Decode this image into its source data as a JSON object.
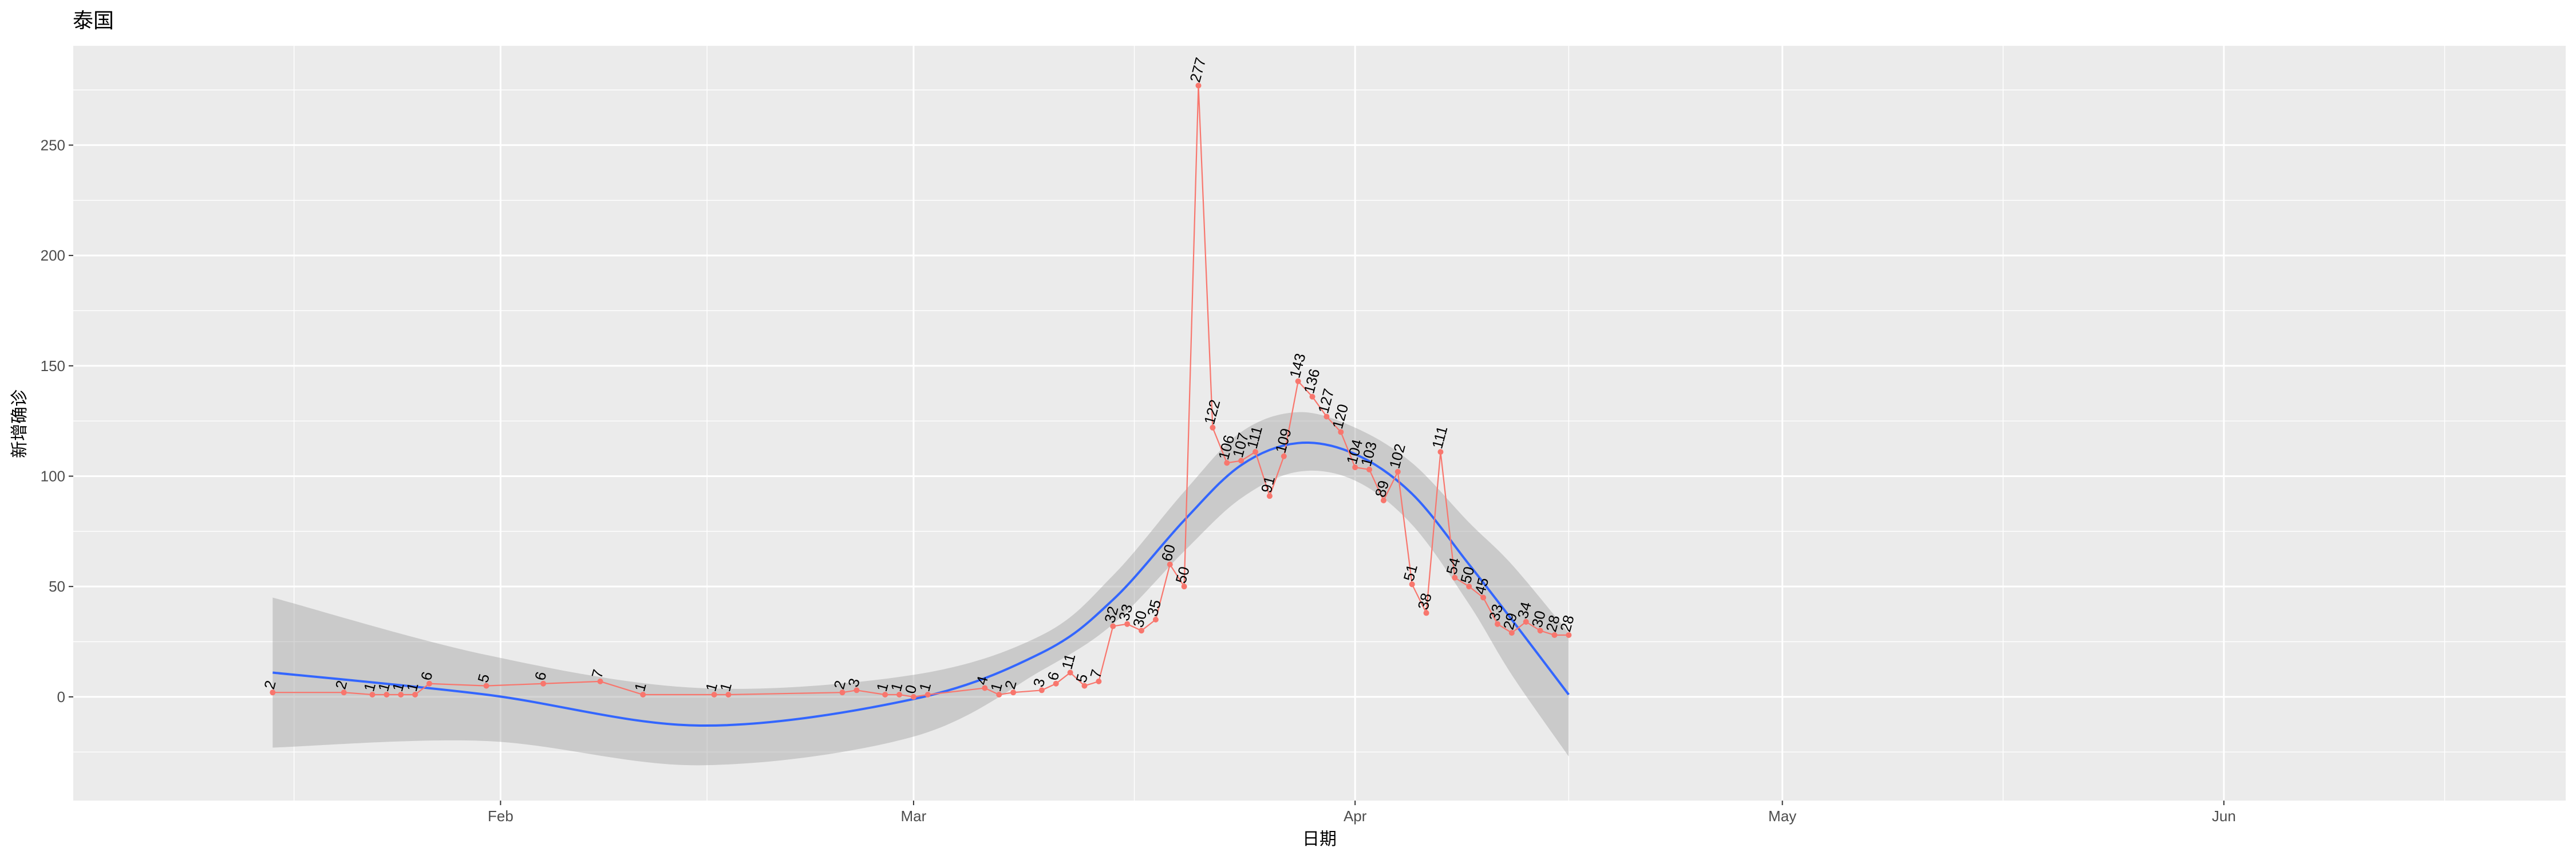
{
  "chart_data": {
    "type": "line",
    "title": "泰国",
    "xlabel": "日期",
    "ylabel": "新增确诊",
    "x_tick_labels": [
      "Feb",
      "Mar",
      "Apr",
      "May",
      "Jun"
    ],
    "x_ticks": [
      "2020-02-01",
      "2020-03-01",
      "2020-04-01",
      "2020-05-01",
      "2020-06-01"
    ],
    "y_ticks": [
      0,
      50,
      100,
      150,
      200,
      250
    ],
    "xlim": [
      "2020-01-02",
      "2020-06-25"
    ],
    "ylim": [
      -47,
      295
    ],
    "grid": true,
    "colors": {
      "panel": "#EBEBEB",
      "grid_major": "#FFFFFF",
      "line": "#F8766D",
      "smooth": "#3366FF",
      "ribbon": "#999999"
    },
    "series": [
      {
        "x": [
          "2020-01-16",
          "2020-01-21",
          "2020-01-23",
          "2020-01-24",
          "2020-01-25",
          "2020-01-26",
          "2020-01-27",
          "2020-01-31",
          "2020-02-04",
          "2020-02-08",
          "2020-02-11",
          "2020-02-16",
          "2020-02-17",
          "2020-02-25",
          "2020-02-26",
          "2020-02-28",
          "2020-02-29",
          "2020-03-01",
          "2020-03-02",
          "2020-03-06",
          "2020-03-07",
          "2020-03-08",
          "2020-03-10",
          "2020-03-11",
          "2020-03-12",
          "2020-03-13",
          "2020-03-14",
          "2020-03-15",
          "2020-03-16",
          "2020-03-17",
          "2020-03-18",
          "2020-03-19",
          "2020-03-20",
          "2020-03-21",
          "2020-03-22",
          "2020-03-23",
          "2020-03-24",
          "2020-03-25",
          "2020-03-26",
          "2020-03-27",
          "2020-03-28",
          "2020-03-29",
          "2020-03-30",
          "2020-03-31",
          "2020-04-01",
          "2020-04-02",
          "2020-04-03",
          "2020-04-04",
          "2020-04-05",
          "2020-04-06",
          "2020-04-07",
          "2020-04-08",
          "2020-04-09",
          "2020-04-10",
          "2020-04-11",
          "2020-04-12",
          "2020-04-13",
          "2020-04-14",
          "2020-04-15",
          "2020-04-16"
        ],
        "values": [
          2,
          2,
          1,
          1,
          1,
          1,
          6,
          5,
          6,
          7,
          1,
          1,
          1,
          2,
          3,
          1,
          1,
          0,
          1,
          4,
          1,
          2,
          3,
          6,
          11,
          5,
          7,
          32,
          33,
          30,
          35,
          60,
          50,
          277,
          122,
          106,
          107,
          111,
          91,
          109,
          143,
          136,
          127,
          120,
          104,
          103,
          89,
          102,
          51,
          38,
          111,
          54,
          50,
          45,
          33,
          29,
          34,
          30,
          28,
          28
        ]
      }
    ],
    "smooth": {
      "x": [
        "2020-01-16",
        "2020-01-31",
        "2020-02-15",
        "2020-03-01",
        "2020-03-10",
        "2020-03-15",
        "2020-03-20",
        "2020-03-24",
        "2020-03-28",
        "2020-04-01",
        "2020-04-05",
        "2020-04-09",
        "2020-04-12",
        "2020-04-16"
      ],
      "y": [
        11,
        1,
        -13,
        -1,
        20,
        44,
        80,
        105,
        115,
        110,
        92,
        60,
        35,
        1
      ],
      "ymin": [
        -23,
        -20,
        -31,
        -18,
        12,
        33,
        66,
        90,
        102,
        98,
        78,
        42,
        10,
        -27
      ],
      "ymax": [
        45,
        19,
        4,
        10,
        28,
        55,
        93,
        120,
        129,
        122,
        106,
        79,
        60,
        29
      ]
    }
  }
}
